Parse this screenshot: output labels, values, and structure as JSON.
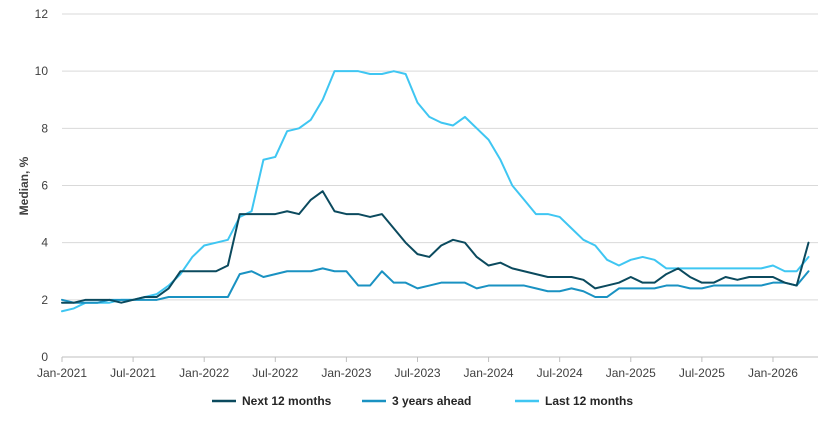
{
  "chart_data": {
    "type": "line",
    "title": "",
    "xlabel": "",
    "ylabel": "Median, %",
    "ylim": [
      0,
      12
    ],
    "yticks": [
      0,
      2,
      4,
      6,
      8,
      10,
      12
    ],
    "x_start": "Jan-2021",
    "x_end": "May-2026",
    "x_tick_labels": [
      "Jan-2021",
      "Jul-2021",
      "Jan-2022",
      "Jul-2022",
      "Jan-2023",
      "Jul-2023",
      "Jan-2024",
      "Jul-2024",
      "Jan-2025",
      "Jul-2025",
      "Jan-2026"
    ],
    "grid": "horizontal",
    "legend_position": "bottom",
    "series": [
      {
        "name": "Next 12 months",
        "color": "#0b4a5e",
        "values": [
          1.9,
          1.9,
          2.0,
          2.0,
          2.0,
          1.9,
          2.0,
          2.1,
          2.1,
          2.4,
          3.0,
          3.0,
          3.0,
          3.0,
          3.2,
          5.0,
          5.0,
          5.0,
          5.0,
          5.1,
          5.0,
          5.5,
          5.8,
          5.1,
          5.0,
          5.0,
          4.9,
          5.0,
          4.5,
          4.0,
          3.6,
          3.5,
          3.9,
          4.1,
          4.0,
          3.5,
          3.2,
          3.3,
          3.1,
          3.0,
          2.9,
          2.8,
          2.8,
          2.8,
          2.7,
          2.4,
          2.5,
          2.6,
          2.8,
          2.6,
          2.6,
          2.9,
          3.1,
          2.8,
          2.6,
          2.6,
          2.8,
          2.7,
          2.8,
          2.8,
          2.8,
          2.6,
          2.5,
          4.0
        ]
      },
      {
        "name": "3 years ahead",
        "color": "#1a92c2",
        "values": [
          2.0,
          1.9,
          1.9,
          1.9,
          2.0,
          2.0,
          2.0,
          2.0,
          2.0,
          2.1,
          2.1,
          2.1,
          2.1,
          2.1,
          2.1,
          2.9,
          3.0,
          2.8,
          2.9,
          3.0,
          3.0,
          3.0,
          3.1,
          3.0,
          3.0,
          2.5,
          2.5,
          3.0,
          2.6,
          2.6,
          2.4,
          2.5,
          2.6,
          2.6,
          2.6,
          2.4,
          2.5,
          2.5,
          2.5,
          2.5,
          2.4,
          2.3,
          2.3,
          2.4,
          2.3,
          2.1,
          2.1,
          2.4,
          2.4,
          2.4,
          2.4,
          2.5,
          2.5,
          2.4,
          2.4,
          2.5,
          2.5,
          2.5,
          2.5,
          2.5,
          2.6,
          2.6,
          2.5,
          3.0
        ]
      },
      {
        "name": "Last 12 months",
        "color": "#3fc6f2",
        "values": [
          1.6,
          1.7,
          1.9,
          1.9,
          1.9,
          2.0,
          2.0,
          2.1,
          2.2,
          2.5,
          2.9,
          3.5,
          3.9,
          4.0,
          4.1,
          4.9,
          5.1,
          6.9,
          7.0,
          7.9,
          8.0,
          8.3,
          9.0,
          10.0,
          10.0,
          10.0,
          9.9,
          9.9,
          10.0,
          9.9,
          8.9,
          8.4,
          8.2,
          8.1,
          8.4,
          8.0,
          7.6,
          6.9,
          6.0,
          5.5,
          5.0,
          5.0,
          4.9,
          4.5,
          4.1,
          3.9,
          3.4,
          3.2,
          3.4,
          3.5,
          3.4,
          3.1,
          3.1,
          3.1,
          3.1,
          3.1,
          3.1,
          3.1,
          3.1,
          3.1,
          3.2,
          3.0,
          3.0,
          3.5
        ]
      }
    ]
  }
}
